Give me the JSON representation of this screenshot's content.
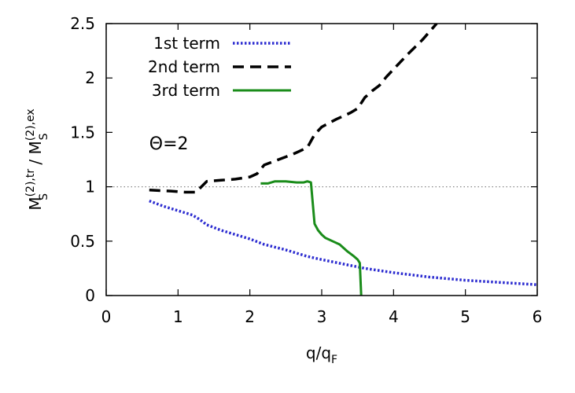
{
  "chart_data": {
    "type": "line",
    "xlim": [
      0,
      6
    ],
    "ylim": [
      0,
      2.5
    ],
    "xticks": [
      0,
      1,
      2,
      3,
      4,
      5,
      6
    ],
    "yticks": [
      0,
      0.5,
      1,
      1.5,
      2,
      2.5
    ],
    "xtick_labels": [
      "0",
      "1",
      "2",
      "3",
      "4",
      "5",
      "6"
    ],
    "ytick_labels": [
      "0",
      "0.5",
      "1",
      "1.5",
      "2",
      "2.5"
    ],
    "xlabel": {
      "base": "q/q",
      "sub": "F"
    },
    "ylabel": {
      "num_base": "M",
      "num_sup": "(2),tr",
      "num_sub": "S",
      "sep": " / ",
      "den_base": "M",
      "den_sup": "(2),ex",
      "den_sub": "S"
    },
    "annotation": {
      "text": "Θ=2",
      "x": 0.6,
      "y": 1.4
    },
    "legend_position": "top-left",
    "reference_line": {
      "y": 1,
      "style": "dotted",
      "color": "#888888"
    },
    "series": [
      {
        "name": "1st term",
        "color": "#2b2bd0",
        "style": "dotted",
        "x": [
          0.6,
          0.8,
          1.0,
          1.2,
          1.3,
          1.4,
          1.6,
          1.8,
          2.0,
          2.2,
          2.5,
          2.8,
          3.0,
          3.3,
          3.6,
          4.0,
          4.5,
          5.0,
          5.5,
          6.0
        ],
        "y": [
          0.87,
          0.82,
          0.78,
          0.74,
          0.7,
          0.65,
          0.6,
          0.56,
          0.52,
          0.47,
          0.42,
          0.36,
          0.33,
          0.29,
          0.25,
          0.21,
          0.17,
          0.14,
          0.12,
          0.1
        ]
      },
      {
        "name": "2nd term",
        "color": "#000000",
        "style": "dashed",
        "x": [
          0.6,
          0.9,
          1.1,
          1.25,
          1.4,
          1.6,
          1.8,
          2.0,
          2.1,
          2.2,
          2.4,
          2.6,
          2.8,
          2.9,
          3.0,
          3.2,
          3.4,
          3.5,
          3.6,
          3.7,
          3.8,
          3.9,
          4.0,
          4.2,
          4.4,
          4.6
        ],
        "y": [
          0.97,
          0.96,
          0.95,
          0.95,
          1.05,
          1.06,
          1.07,
          1.09,
          1.12,
          1.2,
          1.25,
          1.3,
          1.36,
          1.48,
          1.55,
          1.62,
          1.68,
          1.72,
          1.82,
          1.88,
          1.93,
          2.01,
          2.08,
          2.22,
          2.35,
          2.5
        ]
      },
      {
        "name": "3rd term",
        "color": "#1a8c1a",
        "style": "solid",
        "x": [
          2.15,
          2.25,
          2.35,
          2.5,
          2.65,
          2.75,
          2.8,
          2.85,
          2.9,
          2.95,
          3.0,
          3.05,
          3.15,
          3.25,
          3.35,
          3.45,
          3.5,
          3.53,
          3.55
        ],
        "y": [
          1.03,
          1.03,
          1.05,
          1.05,
          1.04,
          1.04,
          1.05,
          1.04,
          0.66,
          0.6,
          0.56,
          0.53,
          0.5,
          0.47,
          0.41,
          0.36,
          0.33,
          0.3,
          0.0
        ]
      }
    ]
  }
}
